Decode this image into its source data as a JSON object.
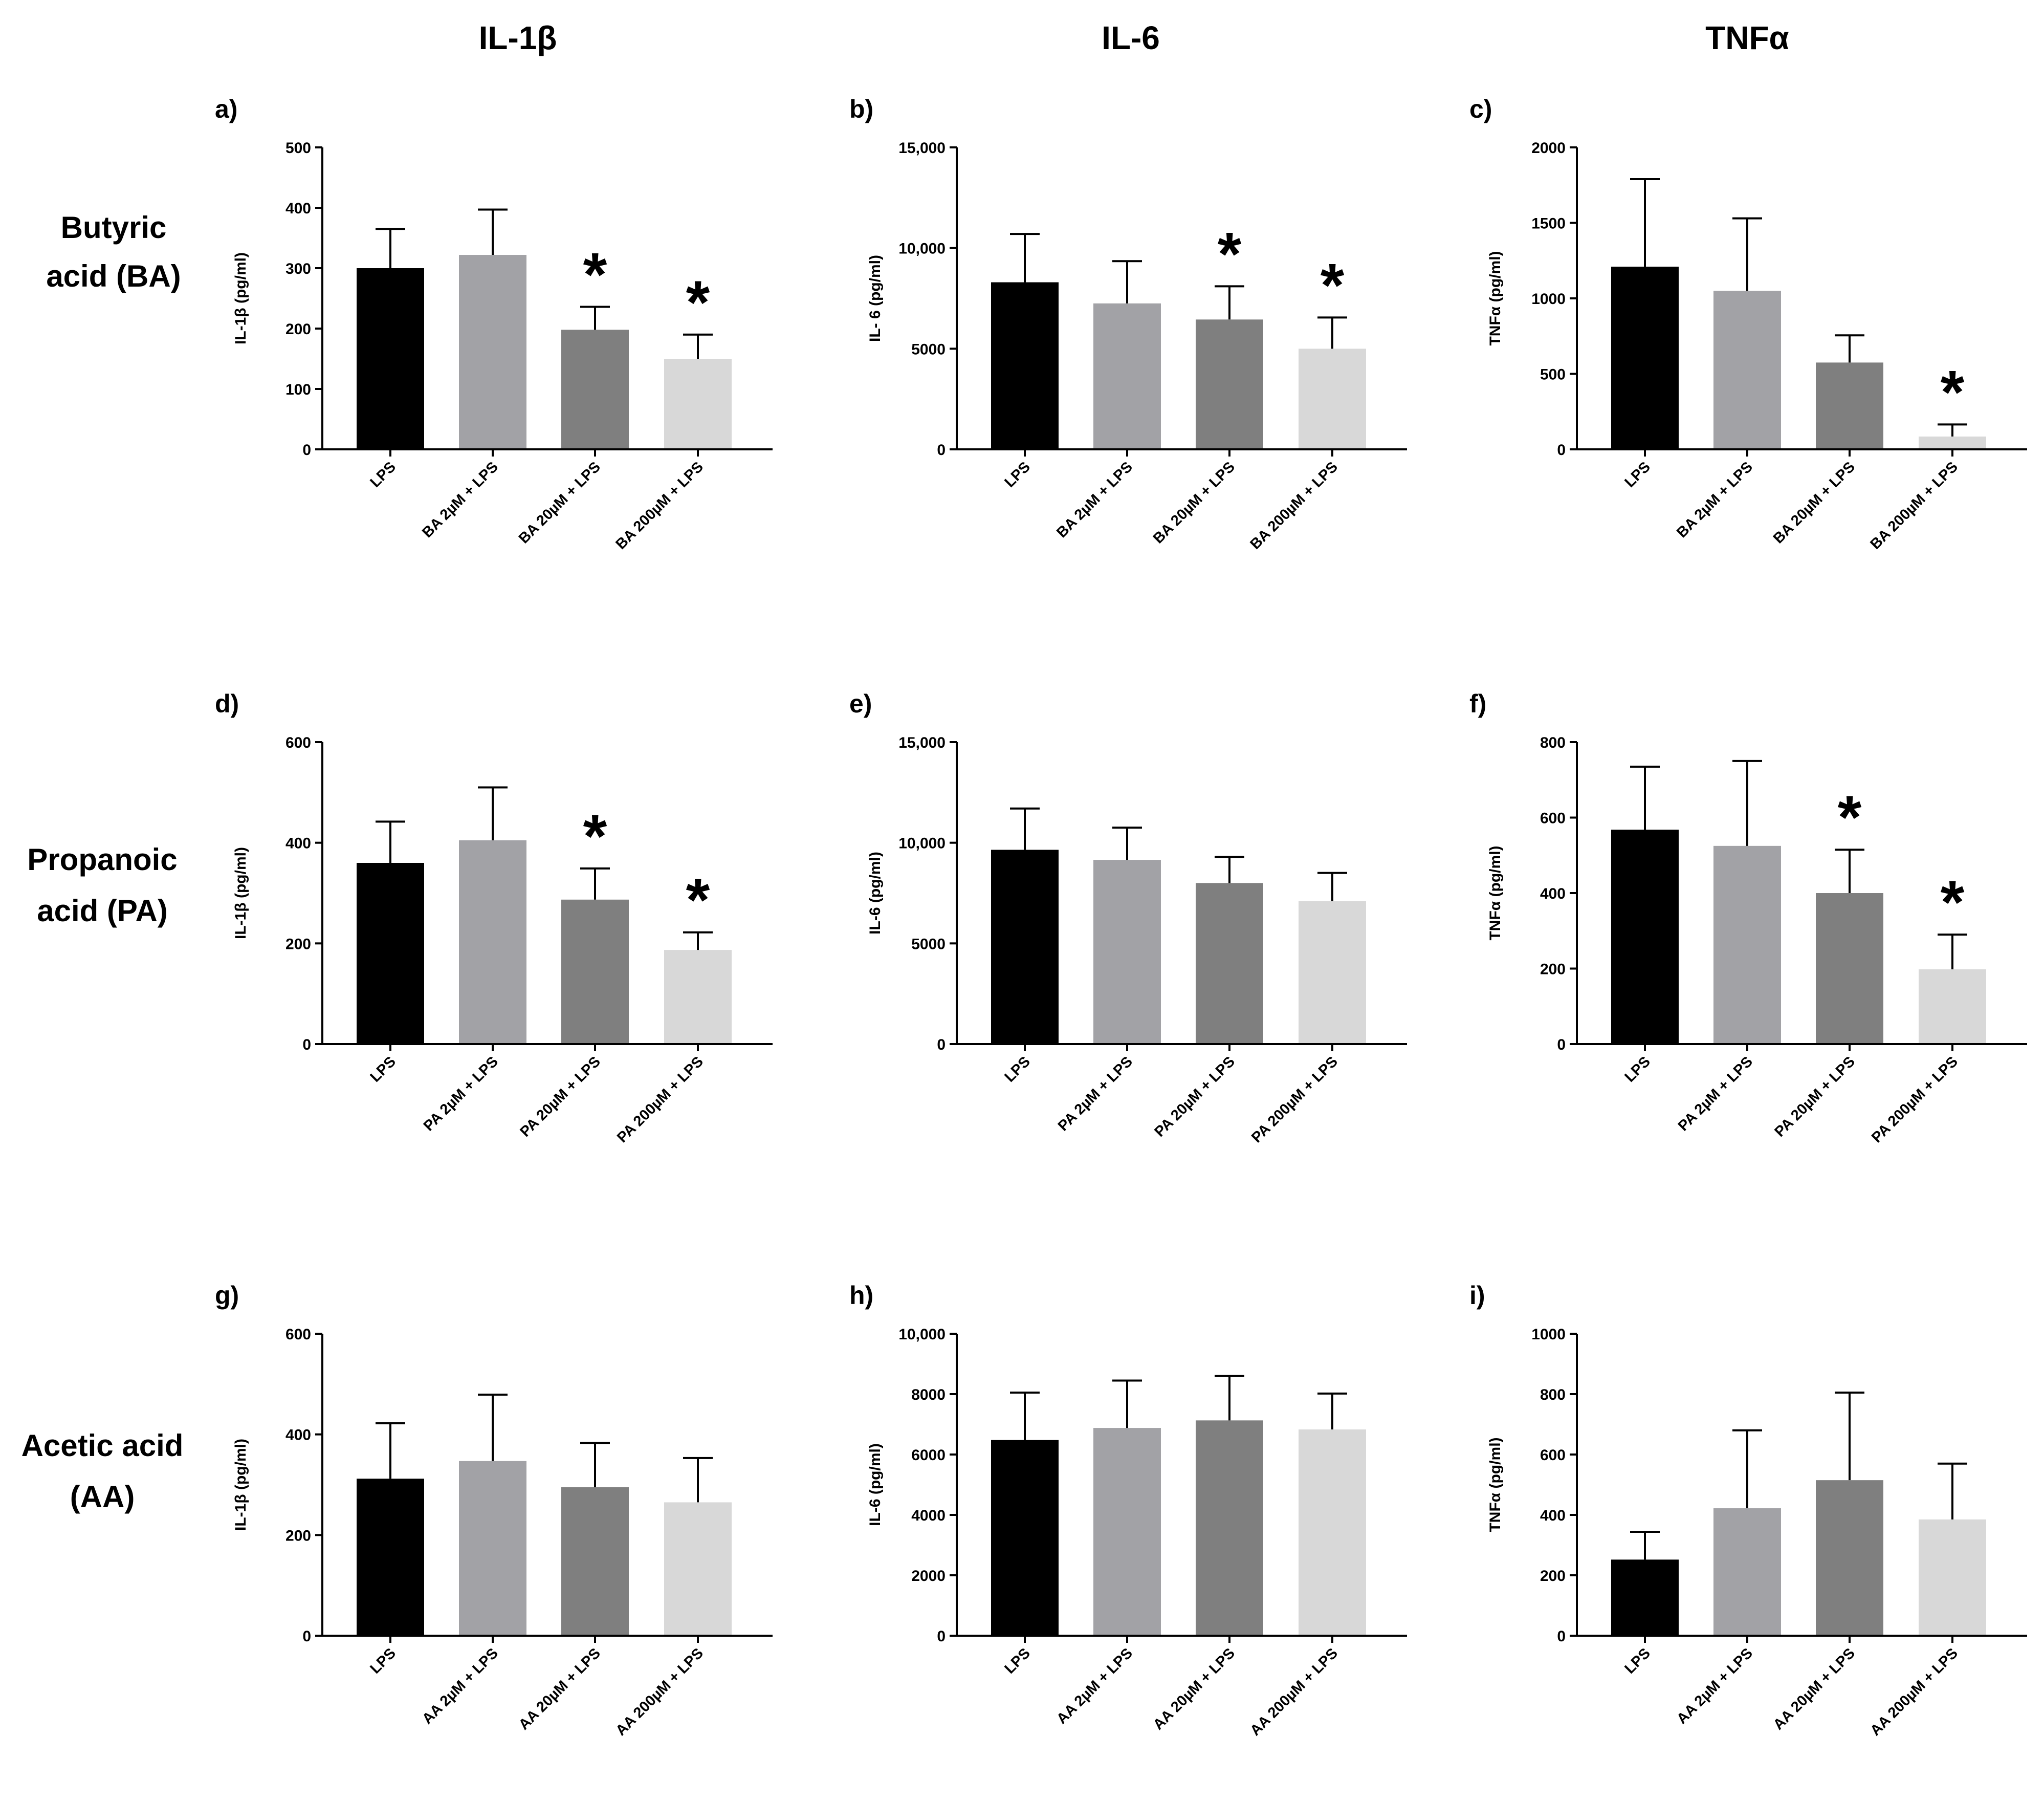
{
  "column_headers": [
    "IL-1β",
    "IL-6",
    "TNFα"
  ],
  "row_labels": [
    {
      "line1": "Butyric",
      "line2": "acid (BA)"
    },
    {
      "line1": "Propanoic",
      "line2": "acid (PA)"
    },
    {
      "line1": "Acetic acid",
      "line2": "(AA)"
    }
  ],
  "colors": {
    "bars": [
      "#000000",
      "#a2a2a6",
      "#7f7f7f",
      "#d8d8d8"
    ],
    "axis": "#000000"
  },
  "significance_marker": "*",
  "chart_data": [
    {
      "type": "bar",
      "panel": "a)",
      "ylabel": "IL-1β (pg/ml)",
      "ylim": [
        0,
        500
      ],
      "ticks": [
        0,
        100,
        200,
        300,
        400,
        500
      ],
      "tick_labels": [
        "0",
        "100",
        "200",
        "300",
        "400",
        "500"
      ],
      "categories": [
        "LPS",
        "BA 2µM + LPS",
        "BA 20µM + LPS",
        "BA 200µM + LPS"
      ],
      "values": [
        300,
        322,
        198,
        150
      ],
      "errors": [
        65,
        75,
        38,
        40
      ],
      "significant": [
        false,
        false,
        true,
        true
      ]
    },
    {
      "type": "bar",
      "panel": "b)",
      "ylabel": "IL- 6 (pg/ml)",
      "ylim": [
        0,
        15000
      ],
      "ticks": [
        0,
        5000,
        10000,
        15000
      ],
      "tick_labels": [
        "0",
        "5000",
        "10,000",
        "15,000"
      ],
      "categories": [
        "LPS",
        "BA 2µM + LPS",
        "BA 20µM + LPS",
        "BA 200µM + LPS"
      ],
      "values": [
        8300,
        7250,
        6450,
        5000
      ],
      "errors": [
        2400,
        2100,
        1650,
        1550
      ],
      "significant": [
        false,
        false,
        true,
        true
      ]
    },
    {
      "type": "bar",
      "panel": "c)",
      "ylabel": "TNFα (pg/ml)",
      "ylim": [
        0,
        2000
      ],
      "ticks": [
        0,
        500,
        1000,
        1500,
        2000
      ],
      "tick_labels": [
        "0",
        "500",
        "1000",
        "1500",
        "2000"
      ],
      "categories": [
        "LPS",
        "BA 2µM + LPS",
        "BA 20µM + LPS",
        "BA 200µM + LPS"
      ],
      "values": [
        1210,
        1050,
        575,
        85
      ],
      "errors": [
        580,
        480,
        180,
        80
      ],
      "significant": [
        false,
        false,
        false,
        true
      ]
    },
    {
      "type": "bar",
      "panel": "d)",
      "ylabel": "IL-1β (pg/ml)",
      "ylim": [
        0,
        600
      ],
      "ticks": [
        0,
        200,
        400,
        600
      ],
      "tick_labels": [
        "0",
        "200",
        "400",
        "600"
      ],
      "categories": [
        "LPS",
        "PA 2µM + LPS",
        "PA 20µM + LPS",
        "PA 200µM + LPS"
      ],
      "values": [
        360,
        405,
        287,
        187
      ],
      "errors": [
        82,
        105,
        62,
        35
      ],
      "significant": [
        false,
        false,
        true,
        true
      ]
    },
    {
      "type": "bar",
      "panel": "e)",
      "ylabel": "IL-6 (pg/ml)",
      "ylim": [
        0,
        15000
      ],
      "ticks": [
        0,
        5000,
        10000,
        15000
      ],
      "tick_labels": [
        "0",
        "5000",
        "10,000",
        "15,000"
      ],
      "categories": [
        "LPS",
        "PA 2µM + LPS",
        "PA 20µM + LPS",
        "PA 200µM + LPS"
      ],
      "values": [
        9650,
        9150,
        8000,
        7100
      ],
      "errors": [
        2050,
        1600,
        1300,
        1400
      ],
      "significant": [
        false,
        false,
        false,
        false
      ]
    },
    {
      "type": "bar",
      "panel": "f)",
      "ylabel": "TNFα (pg/ml)",
      "ylim": [
        0,
        800
      ],
      "ticks": [
        0,
        200,
        400,
        600,
        800
      ],
      "tick_labels": [
        "0",
        "200",
        "400",
        "600",
        "800"
      ],
      "categories": [
        "LPS",
        "PA 2µM + LPS",
        "PA 20µM + LPS",
        "PA 200µM + LPS"
      ],
      "values": [
        568,
        525,
        400,
        198
      ],
      "errors": [
        167,
        225,
        115,
        92
      ],
      "significant": [
        false,
        false,
        true,
        true
      ]
    },
    {
      "type": "bar",
      "panel": "g)",
      "ylabel": "IL-1β (pg/ml)",
      "ylim": [
        0,
        600
      ],
      "ticks": [
        0,
        200,
        400,
        600
      ],
      "tick_labels": [
        "0",
        "200",
        "400",
        "600"
      ],
      "categories": [
        "LPS",
        "AA 2µM + LPS",
        "AA 20µM + LPS",
        "AA 200µM + LPS"
      ],
      "values": [
        312,
        347,
        295,
        265
      ],
      "errors": [
        110,
        132,
        88,
        88
      ],
      "significant": [
        false,
        false,
        false,
        false
      ]
    },
    {
      "type": "bar",
      "panel": "h)",
      "ylabel": "IL-6 (pg/ml)",
      "ylim": [
        0,
        10000
      ],
      "ticks": [
        0,
        2000,
        4000,
        6000,
        8000,
        10000
      ],
      "tick_labels": [
        "0",
        "2000",
        "4000",
        "6000",
        "8000",
        "10,000"
      ],
      "categories": [
        "LPS",
        "AA 2µM + LPS",
        "AA 20µM + LPS",
        "AA 200µM + LPS"
      ],
      "values": [
        6480,
        6880,
        7130,
        6830
      ],
      "errors": [
        1570,
        1570,
        1470,
        1190
      ],
      "significant": [
        false,
        false,
        false,
        false
      ]
    },
    {
      "type": "bar",
      "panel": "i)",
      "ylabel": "TNFα (pg/ml)",
      "ylim": [
        0,
        1000
      ],
      "ticks": [
        0,
        200,
        400,
        600,
        800,
        1000
      ],
      "tick_labels": [
        "0",
        "200",
        "400",
        "600",
        "800",
        "1000"
      ],
      "categories": [
        "LPS",
        "AA 2µM + LPS",
        "AA 20µM + LPS",
        "AA 200µM + LPS"
      ],
      "values": [
        252,
        422,
        515,
        385
      ],
      "errors": [
        92,
        258,
        290,
        185
      ],
      "significant": [
        false,
        false,
        false,
        false
      ]
    }
  ]
}
